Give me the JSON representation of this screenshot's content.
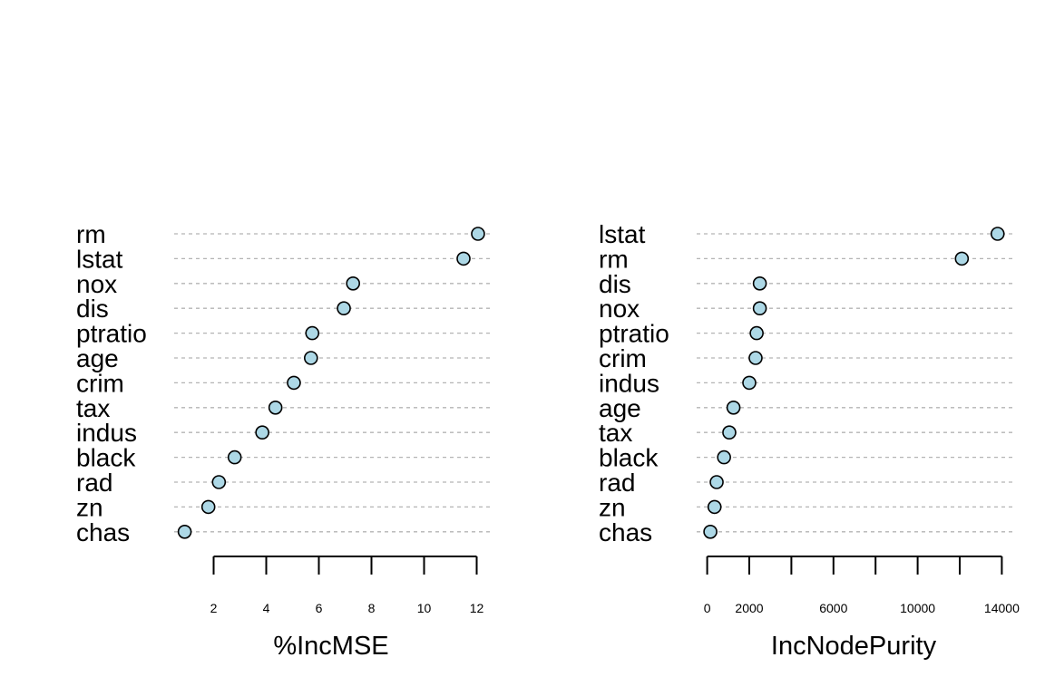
{
  "colors": {
    "point_fill": "#add8e6",
    "point_stroke": "#000000",
    "guide": "#b4b4b4"
  },
  "chart_data": [
    {
      "type": "scatter",
      "subtype": "dotchart",
      "xlabel": "%IncMSE",
      "categories": [
        "rm",
        "lstat",
        "nox",
        "dis",
        "ptratio",
        "age",
        "crim",
        "tax",
        "indus",
        "black",
        "rad",
        "zn",
        "chas"
      ],
      "values": [
        12.05,
        11.5,
        7.3,
        6.95,
        5.75,
        5.7,
        5.05,
        4.35,
        3.85,
        2.8,
        2.2,
        1.8,
        0.9
      ],
      "xlim": [
        0.5,
        12.5
      ],
      "xticks": [
        2,
        4,
        6,
        8,
        10,
        12
      ],
      "xtick_labels": [
        "2",
        "4",
        "6",
        "8",
        "10",
        "12"
      ],
      "grid": "dashed horizontal guides"
    },
    {
      "type": "scatter",
      "subtype": "dotchart",
      "xlabel": "IncNodePurity",
      "categories": [
        "lstat",
        "rm",
        "dis",
        "nox",
        "ptratio",
        "crim",
        "indus",
        "age",
        "tax",
        "black",
        "rad",
        "zn",
        "chas"
      ],
      "values": [
        13800,
        12100,
        2500,
        2500,
        2350,
        2300,
        2000,
        1250,
        1050,
        800,
        450,
        350,
        150
      ],
      "xlim": [
        -500,
        14500
      ],
      "xticks": [
        0,
        2000,
        4000,
        6000,
        8000,
        10000,
        12000,
        14000
      ],
      "xtick_labels": [
        "0",
        "2000",
        "",
        "6000",
        "",
        "10000",
        "",
        "14000"
      ],
      "grid": "dashed horizontal guides"
    }
  ]
}
